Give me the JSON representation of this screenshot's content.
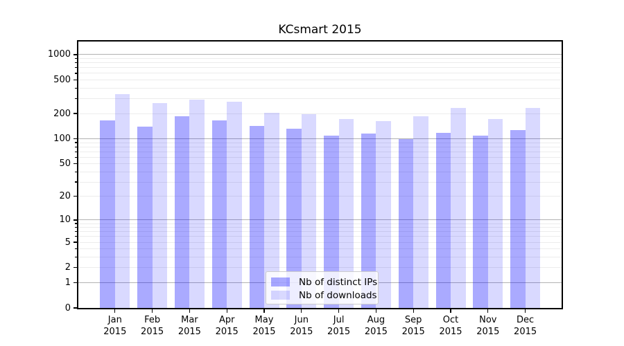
{
  "title": "KCsmart 2015",
  "chart_data": {
    "type": "bar",
    "title": "KCsmart 2015",
    "categories": [
      "Jan",
      "Feb",
      "Mar",
      "Apr",
      "May",
      "Jun",
      "Jul",
      "Aug",
      "Sep",
      "Oct",
      "Nov",
      "Dec"
    ],
    "year_line": "2015",
    "series": [
      {
        "name": "Nb of distinct IPs",
        "color": "rgba(0,0,255,0.335)",
        "color_hex": "#aaaaff",
        "values": [
          165,
          140,
          186,
          165,
          141,
          132,
          110,
          115,
          100,
          118,
          108,
          126
        ]
      },
      {
        "name": "Nb of downloads",
        "color": "rgba(0,0,255,0.15)",
        "color_hex": "#d9d9ff",
        "values": [
          338,
          266,
          292,
          276,
          204,
          198,
          172,
          164,
          186,
          232,
          171,
          232
        ]
      }
    ],
    "y_tick_labels": [
      0,
      1,
      2,
      5,
      10,
      20,
      50,
      100,
      200,
      500,
      1000
    ],
    "y_major_gridlines": [
      1,
      10,
      100,
      1000
    ],
    "scale": "log(v+1)",
    "y_axis_top_value": 1431,
    "ylim": [
      0,
      1431
    ],
    "xlabel": "",
    "ylabel": "",
    "grid": true,
    "legend_position": "lower center",
    "grid_major_color": "#b2b2b2",
    "grid_minor_color": "#ececec"
  }
}
